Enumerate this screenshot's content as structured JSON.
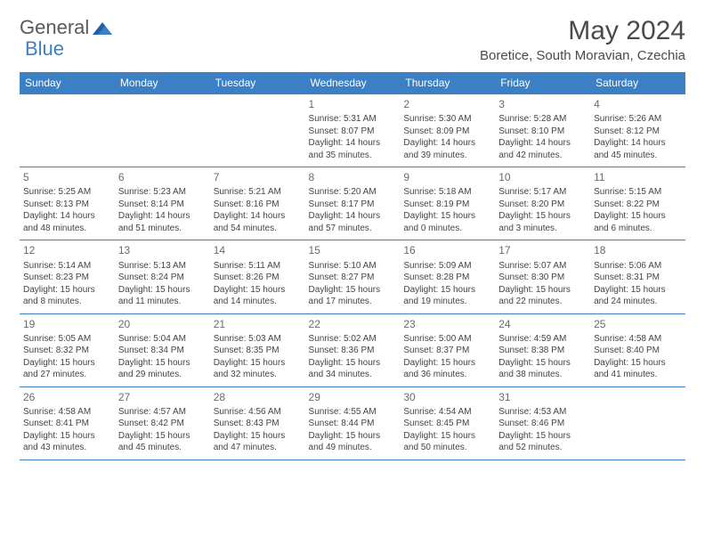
{
  "logo": {
    "word1": "General",
    "word2": "Blue"
  },
  "title": "May 2024",
  "location": "Boretice, South Moravian, Czechia",
  "weekdays": [
    "Sunday",
    "Monday",
    "Tuesday",
    "Wednesday",
    "Thursday",
    "Friday",
    "Saturday"
  ],
  "header_bg": "#3b7fc4",
  "border_color": "#3b7fc4",
  "leading_blanks": 3,
  "days": [
    {
      "n": "1",
      "sunrise": "Sunrise: 5:31 AM",
      "sunset": "Sunset: 8:07 PM",
      "d1": "Daylight: 14 hours",
      "d2": "and 35 minutes."
    },
    {
      "n": "2",
      "sunrise": "Sunrise: 5:30 AM",
      "sunset": "Sunset: 8:09 PM",
      "d1": "Daylight: 14 hours",
      "d2": "and 39 minutes."
    },
    {
      "n": "3",
      "sunrise": "Sunrise: 5:28 AM",
      "sunset": "Sunset: 8:10 PM",
      "d1": "Daylight: 14 hours",
      "d2": "and 42 minutes."
    },
    {
      "n": "4",
      "sunrise": "Sunrise: 5:26 AM",
      "sunset": "Sunset: 8:12 PM",
      "d1": "Daylight: 14 hours",
      "d2": "and 45 minutes."
    },
    {
      "n": "5",
      "sunrise": "Sunrise: 5:25 AM",
      "sunset": "Sunset: 8:13 PM",
      "d1": "Daylight: 14 hours",
      "d2": "and 48 minutes."
    },
    {
      "n": "6",
      "sunrise": "Sunrise: 5:23 AM",
      "sunset": "Sunset: 8:14 PM",
      "d1": "Daylight: 14 hours",
      "d2": "and 51 minutes."
    },
    {
      "n": "7",
      "sunrise": "Sunrise: 5:21 AM",
      "sunset": "Sunset: 8:16 PM",
      "d1": "Daylight: 14 hours",
      "d2": "and 54 minutes."
    },
    {
      "n": "8",
      "sunrise": "Sunrise: 5:20 AM",
      "sunset": "Sunset: 8:17 PM",
      "d1": "Daylight: 14 hours",
      "d2": "and 57 minutes."
    },
    {
      "n": "9",
      "sunrise": "Sunrise: 5:18 AM",
      "sunset": "Sunset: 8:19 PM",
      "d1": "Daylight: 15 hours",
      "d2": "and 0 minutes."
    },
    {
      "n": "10",
      "sunrise": "Sunrise: 5:17 AM",
      "sunset": "Sunset: 8:20 PM",
      "d1": "Daylight: 15 hours",
      "d2": "and 3 minutes."
    },
    {
      "n": "11",
      "sunrise": "Sunrise: 5:15 AM",
      "sunset": "Sunset: 8:22 PM",
      "d1": "Daylight: 15 hours",
      "d2": "and 6 minutes."
    },
    {
      "n": "12",
      "sunrise": "Sunrise: 5:14 AM",
      "sunset": "Sunset: 8:23 PM",
      "d1": "Daylight: 15 hours",
      "d2": "and 8 minutes."
    },
    {
      "n": "13",
      "sunrise": "Sunrise: 5:13 AM",
      "sunset": "Sunset: 8:24 PM",
      "d1": "Daylight: 15 hours",
      "d2": "and 11 minutes."
    },
    {
      "n": "14",
      "sunrise": "Sunrise: 5:11 AM",
      "sunset": "Sunset: 8:26 PM",
      "d1": "Daylight: 15 hours",
      "d2": "and 14 minutes."
    },
    {
      "n": "15",
      "sunrise": "Sunrise: 5:10 AM",
      "sunset": "Sunset: 8:27 PM",
      "d1": "Daylight: 15 hours",
      "d2": "and 17 minutes."
    },
    {
      "n": "16",
      "sunrise": "Sunrise: 5:09 AM",
      "sunset": "Sunset: 8:28 PM",
      "d1": "Daylight: 15 hours",
      "d2": "and 19 minutes."
    },
    {
      "n": "17",
      "sunrise": "Sunrise: 5:07 AM",
      "sunset": "Sunset: 8:30 PM",
      "d1": "Daylight: 15 hours",
      "d2": "and 22 minutes."
    },
    {
      "n": "18",
      "sunrise": "Sunrise: 5:06 AM",
      "sunset": "Sunset: 8:31 PM",
      "d1": "Daylight: 15 hours",
      "d2": "and 24 minutes."
    },
    {
      "n": "19",
      "sunrise": "Sunrise: 5:05 AM",
      "sunset": "Sunset: 8:32 PM",
      "d1": "Daylight: 15 hours",
      "d2": "and 27 minutes."
    },
    {
      "n": "20",
      "sunrise": "Sunrise: 5:04 AM",
      "sunset": "Sunset: 8:34 PM",
      "d1": "Daylight: 15 hours",
      "d2": "and 29 minutes."
    },
    {
      "n": "21",
      "sunrise": "Sunrise: 5:03 AM",
      "sunset": "Sunset: 8:35 PM",
      "d1": "Daylight: 15 hours",
      "d2": "and 32 minutes."
    },
    {
      "n": "22",
      "sunrise": "Sunrise: 5:02 AM",
      "sunset": "Sunset: 8:36 PM",
      "d1": "Daylight: 15 hours",
      "d2": "and 34 minutes."
    },
    {
      "n": "23",
      "sunrise": "Sunrise: 5:00 AM",
      "sunset": "Sunset: 8:37 PM",
      "d1": "Daylight: 15 hours",
      "d2": "and 36 minutes."
    },
    {
      "n": "24",
      "sunrise": "Sunrise: 4:59 AM",
      "sunset": "Sunset: 8:38 PM",
      "d1": "Daylight: 15 hours",
      "d2": "and 38 minutes."
    },
    {
      "n": "25",
      "sunrise": "Sunrise: 4:58 AM",
      "sunset": "Sunset: 8:40 PM",
      "d1": "Daylight: 15 hours",
      "d2": "and 41 minutes."
    },
    {
      "n": "26",
      "sunrise": "Sunrise: 4:58 AM",
      "sunset": "Sunset: 8:41 PM",
      "d1": "Daylight: 15 hours",
      "d2": "and 43 minutes."
    },
    {
      "n": "27",
      "sunrise": "Sunrise: 4:57 AM",
      "sunset": "Sunset: 8:42 PM",
      "d1": "Daylight: 15 hours",
      "d2": "and 45 minutes."
    },
    {
      "n": "28",
      "sunrise": "Sunrise: 4:56 AM",
      "sunset": "Sunset: 8:43 PM",
      "d1": "Daylight: 15 hours",
      "d2": "and 47 minutes."
    },
    {
      "n": "29",
      "sunrise": "Sunrise: 4:55 AM",
      "sunset": "Sunset: 8:44 PM",
      "d1": "Daylight: 15 hours",
      "d2": "and 49 minutes."
    },
    {
      "n": "30",
      "sunrise": "Sunrise: 4:54 AM",
      "sunset": "Sunset: 8:45 PM",
      "d1": "Daylight: 15 hours",
      "d2": "and 50 minutes."
    },
    {
      "n": "31",
      "sunrise": "Sunrise: 4:53 AM",
      "sunset": "Sunset: 8:46 PM",
      "d1": "Daylight: 15 hours",
      "d2": "and 52 minutes."
    }
  ]
}
